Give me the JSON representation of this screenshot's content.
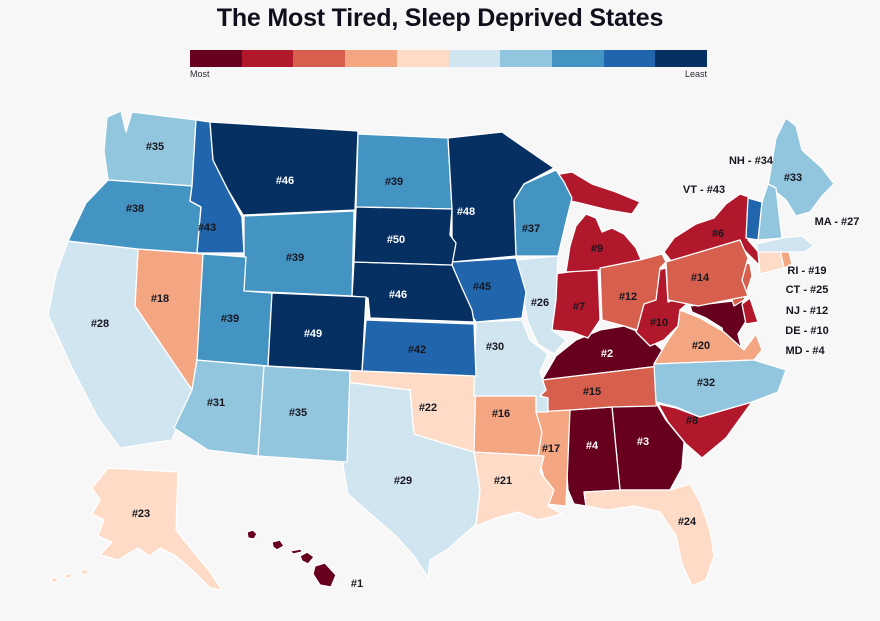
{
  "title": "The Most Tired, Sleep Deprived States",
  "legend": {
    "most_label": "Most",
    "least_label": "Least"
  },
  "chart_data": {
    "type": "heatmap",
    "subtype": "us-state-choropleth",
    "title": "The Most Tired, Sleep Deprived States",
    "legend_position": "top",
    "colorscale": {
      "bins": 10,
      "ranks_per_bin": 5,
      "rank_range": [
        1,
        50
      ],
      "most_label": "Most",
      "least_label": "Least",
      "colors": [
        "#67001f",
        "#b2182b",
        "#d6604d",
        "#f4a582",
        "#fddbc7",
        "#d1e5f0",
        "#92c5de",
        "#4393c3",
        "#2166ac",
        "#053061"
      ]
    },
    "states": [
      {
        "abbr": "HI",
        "name": "Hawaii",
        "rank": 1,
        "label": "#1"
      },
      {
        "abbr": "KY",
        "name": "Kentucky",
        "rank": 2,
        "label": "#2"
      },
      {
        "abbr": "GA",
        "name": "Georgia",
        "rank": 3,
        "label": "#3"
      },
      {
        "abbr": "AL",
        "name": "Alabama",
        "rank": 4,
        "label": "#4"
      },
      {
        "abbr": "MD",
        "name": "Maryland",
        "rank": 4,
        "label": "#4",
        "outside_text": "MD - #4"
      },
      {
        "abbr": "NY",
        "name": "New York",
        "rank": 6,
        "label": "#6"
      },
      {
        "abbr": "IN",
        "name": "Indiana",
        "rank": 7,
        "label": "#7"
      },
      {
        "abbr": "SC",
        "name": "South Carolina",
        "rank": 8,
        "label": "#8"
      },
      {
        "abbr": "MI",
        "name": "Michigan",
        "rank": 9,
        "label": "#9"
      },
      {
        "abbr": "WV",
        "name": "West Virginia",
        "rank": 10,
        "label": "#10"
      },
      {
        "abbr": "DE",
        "name": "Delaware",
        "rank": 10,
        "label": "#10",
        "outside_text": "DE - #10"
      },
      {
        "abbr": "OH",
        "name": "Ohio",
        "rank": 12,
        "label": "#12"
      },
      {
        "abbr": "NJ",
        "name": "New Jersey",
        "rank": 12,
        "label": "#12",
        "outside_text": "NJ - #12"
      },
      {
        "abbr": "PA",
        "name": "Pennsylvania",
        "rank": 14,
        "label": "#14"
      },
      {
        "abbr": "TN",
        "name": "Tennessee",
        "rank": 15,
        "label": "#15"
      },
      {
        "abbr": "AR",
        "name": "Arkansas",
        "rank": 16,
        "label": "#16"
      },
      {
        "abbr": "MS",
        "name": "Mississippi",
        "rank": 17,
        "label": "#17"
      },
      {
        "abbr": "NV",
        "name": "Nevada",
        "rank": 18,
        "label": "#18"
      },
      {
        "abbr": "RI",
        "name": "Rhode Island",
        "rank": 19,
        "label": "#19",
        "outside_text": "RI - #19"
      },
      {
        "abbr": "VA",
        "name": "Virginia",
        "rank": 20,
        "label": "#20"
      },
      {
        "abbr": "LA",
        "name": "Louisiana",
        "rank": 21,
        "label": "#21"
      },
      {
        "abbr": "OK",
        "name": "Oklahoma",
        "rank": 22,
        "label": "#22"
      },
      {
        "abbr": "AK",
        "name": "Alaska",
        "rank": 23,
        "label": "#23"
      },
      {
        "abbr": "FL",
        "name": "Florida",
        "rank": 24,
        "label": "#24"
      },
      {
        "abbr": "CT",
        "name": "Connecticut",
        "rank": 25,
        "label": "#25",
        "outside_text": "CT - #25"
      },
      {
        "abbr": "IL",
        "name": "Illinois",
        "rank": 26,
        "label": "#26"
      },
      {
        "abbr": "MA",
        "name": "Massachusetts",
        "rank": 27,
        "label": "#27",
        "outside_text": "MA - #27"
      },
      {
        "abbr": "CA",
        "name": "California",
        "rank": 28,
        "label": "#28"
      },
      {
        "abbr": "TX",
        "name": "Texas",
        "rank": 29,
        "label": "#29"
      },
      {
        "abbr": "MO",
        "name": "Missouri",
        "rank": 30,
        "label": "#30"
      },
      {
        "abbr": "AZ",
        "name": "Arizona",
        "rank": 31,
        "label": "#31"
      },
      {
        "abbr": "NC",
        "name": "North Carolina",
        "rank": 32,
        "label": "#32"
      },
      {
        "abbr": "ME",
        "name": "Maine",
        "rank": 33,
        "label": "#33"
      },
      {
        "abbr": "NH",
        "name": "New Hampshire",
        "rank": 34,
        "label": "#34",
        "outside_text": "NH - #34"
      },
      {
        "abbr": "WA",
        "name": "Washington",
        "rank": 35,
        "label": "#35"
      },
      {
        "abbr": "NM",
        "name": "New Mexico",
        "rank": 35,
        "label": "#35"
      },
      {
        "abbr": "WI",
        "name": "Wisconsin",
        "rank": 37,
        "label": "#37"
      },
      {
        "abbr": "OR",
        "name": "Oregon",
        "rank": 38,
        "label": "#38"
      },
      {
        "abbr": "WY",
        "name": "Wyoming",
        "rank": 39,
        "label": "#39"
      },
      {
        "abbr": "UT",
        "name": "Utah",
        "rank": 39,
        "label": "#39"
      },
      {
        "abbr": "ND",
        "name": "North Dakota",
        "rank": 39,
        "label": "#39"
      },
      {
        "abbr": "KS",
        "name": "Kansas",
        "rank": 42,
        "label": "#42"
      },
      {
        "abbr": "ID",
        "name": "Idaho",
        "rank": 43,
        "label": "#43"
      },
      {
        "abbr": "VT",
        "name": "Vermont",
        "rank": 43,
        "label": "#43",
        "outside_text": "VT - #43"
      },
      {
        "abbr": "IA",
        "name": "Iowa",
        "rank": 45,
        "label": "#45"
      },
      {
        "abbr": "MT",
        "name": "Montana",
        "rank": 46,
        "label": "#46"
      },
      {
        "abbr": "NE",
        "name": "Nebraska",
        "rank": 46,
        "label": "#46"
      },
      {
        "abbr": "MN",
        "name": "Minnesota",
        "rank": 48,
        "label": "#48"
      },
      {
        "abbr": "CO",
        "name": "Colorado",
        "rank": 49,
        "label": "#49"
      },
      {
        "abbr": "SD",
        "name": "South Dakota",
        "rank": 50,
        "label": "#50"
      }
    ]
  }
}
